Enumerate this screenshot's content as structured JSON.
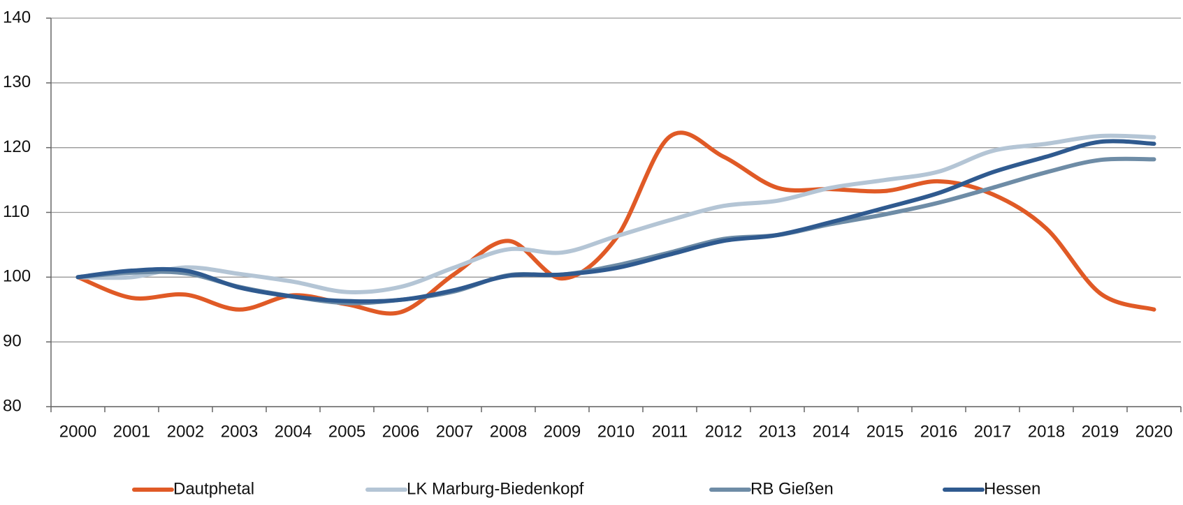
{
  "chart_data": {
    "type": "line",
    "categories": [
      "2000",
      "2001",
      "2002",
      "2003",
      "2004",
      "2005",
      "2006",
      "2007",
      "2008",
      "2009",
      "2010",
      "2011",
      "2012",
      "2013",
      "2014",
      "2015",
      "2016",
      "2017",
      "2018",
      "2019",
      "2020"
    ],
    "series": [
      {
        "name": "Dautphetal",
        "color": "#e05a26",
        "values": [
          100,
          96.8,
          97.3,
          95,
          97.2,
          95.8,
          94.6,
          100.5,
          105.6,
          99.8,
          106,
          121.7,
          118.6,
          113.8,
          113.6,
          113.3,
          114.8,
          112.8,
          107.5,
          97.5,
          95
        ]
      },
      {
        "name": "LK Marburg-Biedenkopf",
        "color": "#b4c5d5",
        "values": [
          100,
          100,
          101.5,
          100.5,
          99.3,
          97.7,
          98.5,
          101.5,
          104.3,
          103.8,
          106.3,
          108.8,
          111,
          111.8,
          113.8,
          115,
          116.3,
          119.5,
          120.6,
          121.8,
          121.6
        ]
      },
      {
        "name": "RB Gießen",
        "color": "#6e8ca6",
        "values": [
          100,
          100.7,
          100.6,
          98.5,
          97,
          96,
          96.5,
          97.8,
          100.3,
          100.4,
          101.8,
          103.8,
          105.9,
          106.5,
          108.2,
          109.7,
          111.5,
          113.8,
          116.2,
          118.1,
          118.2
        ]
      },
      {
        "name": "Hessen",
        "color": "#2f5a8f",
        "values": [
          100,
          101,
          101,
          98.4,
          97,
          96.3,
          96.5,
          98,
          100.2,
          100.4,
          101.4,
          103.5,
          105.6,
          106.5,
          108.5,
          110.7,
          113,
          116.2,
          118.6,
          120.9,
          120.6
        ]
      }
    ],
    "ylim": [
      80,
      140
    ],
    "yticks": [
      80,
      90,
      100,
      110,
      120,
      130,
      140
    ],
    "grid": true,
    "smooth": true,
    "legend": "bottom"
  }
}
